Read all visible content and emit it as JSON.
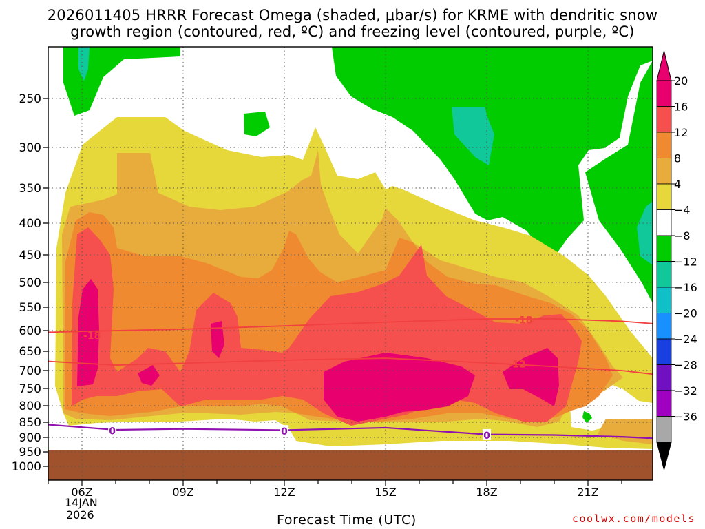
{
  "title": {
    "line1": "2026011405 HRRR Forecast Omega (shaded, μbar/s) for KRME with dendritic snow",
    "line2": "growth region (contoured, red, ºC) and freezing level (contoured, purple, ºC)"
  },
  "footer": {
    "credit": "coolwx.com/models"
  },
  "chart_data": {
    "type": "heatmap",
    "xlabel": "Forecast Time (UTC)",
    "date_line1": "14JAN",
    "date_line2": "2026",
    "x_ticks": [
      "06Z",
      "09Z",
      "12Z",
      "15Z",
      "18Z",
      "21Z"
    ],
    "y_ticks": [
      250,
      300,
      350,
      400,
      450,
      500,
      550,
      600,
      650,
      700,
      750,
      800,
      850,
      900,
      950,
      1000
    ],
    "ylim": [
      200,
      1050
    ],
    "grid": true,
    "colorbar": {
      "labels": [
        "20",
        "16",
        "12",
        "8",
        "4",
        "−4",
        "−8",
        "−12",
        "−16",
        "−20",
        "−24",
        "−28",
        "−32",
        "−36"
      ],
      "colors": [
        "#e8006e",
        "#f6504e",
        "#f08a30",
        "#e8ac3c",
        "#e6d83a",
        "#ffffff",
        "#00cc00",
        "#10c89a",
        "#10c0c8",
        "#1890ff",
        "#1840e0",
        "#7010c0",
        "#a000c0",
        "#a8a8a8"
      ],
      "top_arrow_color": "#e8006e",
      "bottom_arrow_color": "#000000"
    },
    "contours": [
      {
        "label": "-18",
        "color": "#f04040",
        "points": [
          [
            5,
            604
          ],
          [
            7,
            600
          ],
          [
            9,
            597
          ],
          [
            12,
            590
          ],
          [
            15,
            582
          ],
          [
            18,
            575
          ],
          [
            20,
            575
          ],
          [
            22,
            580
          ],
          [
            23,
            585
          ]
        ]
      },
      {
        "label": "-12",
        "color": "#f04040",
        "points": [
          [
            5,
            676
          ],
          [
            7,
            686
          ],
          [
            9,
            681
          ],
          [
            12,
            673
          ],
          [
            15,
            668
          ],
          [
            18,
            680
          ],
          [
            20,
            690
          ],
          [
            22,
            700
          ],
          [
            23,
            710
          ]
        ]
      },
      {
        "label": "0",
        "color": "#9010b0",
        "points": [
          [
            5,
            858
          ],
          [
            7,
            875
          ],
          [
            9,
            872
          ],
          [
            12,
            876
          ],
          [
            15,
            868
          ],
          [
            18,
            890
          ],
          [
            20,
            892
          ],
          [
            22,
            898
          ],
          [
            23,
            903
          ]
        ]
      }
    ],
    "contour_labels": [
      {
        "text": "-18",
        "x": 6.3,
        "y": 612
      },
      {
        "text": "-12",
        "x": 18.9,
        "y": 683
      },
      {
        "text": "0",
        "x": 6.9,
        "y": 878
      },
      {
        "text": "0",
        "x": 12.0,
        "y": 880
      },
      {
        "text": "0",
        "x": 18.0,
        "y": 893
      },
      {
        "text": "-18",
        "x": 19.1,
        "y": 577
      }
    ]
  }
}
